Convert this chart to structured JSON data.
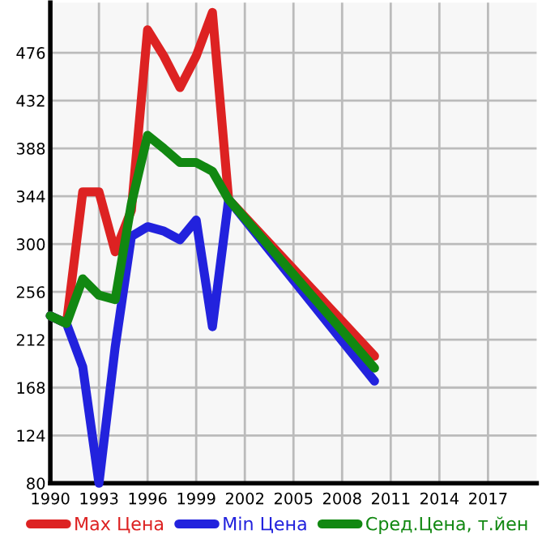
{
  "chart_data": {
    "type": "line",
    "x": [
      1990,
      1991,
      1992,
      1993,
      1994,
      1995,
      1996,
      1997,
      1998,
      1999,
      2000,
      2001,
      2010
    ],
    "series": [
      {
        "name": "Max Цена",
        "color": "#dd2222",
        "values": [
          234,
          227,
          348,
          348,
          293,
          331,
          497,
          473,
          444,
          473,
          513,
          341,
          197
        ]
      },
      {
        "name": "Min Цена",
        "color": "#2222dd",
        "values": [
          234,
          227,
          187,
          80,
          205,
          307,
          316,
          312,
          304,
          322,
          224,
          341,
          174
        ]
      },
      {
        "name": "Сред.Цена, т.йен",
        "color": "#118811",
        "values": [
          234,
          227,
          268,
          253,
          249,
          337,
          400,
          388,
          375,
          375,
          367,
          341,
          186
        ]
      }
    ],
    "xlim": [
      1990,
      2020
    ],
    "xticks": [
      1990,
      1993,
      1996,
      1999,
      2002,
      2005,
      2008,
      2011,
      2014,
      2017
    ],
    "ylim": [
      80,
      522
    ],
    "yticks": [
      80,
      124,
      168,
      212,
      256,
      300,
      344,
      388,
      432,
      476
    ],
    "grid": true,
    "legend": "bottom",
    "marker": "none",
    "line_style": "solid"
  }
}
